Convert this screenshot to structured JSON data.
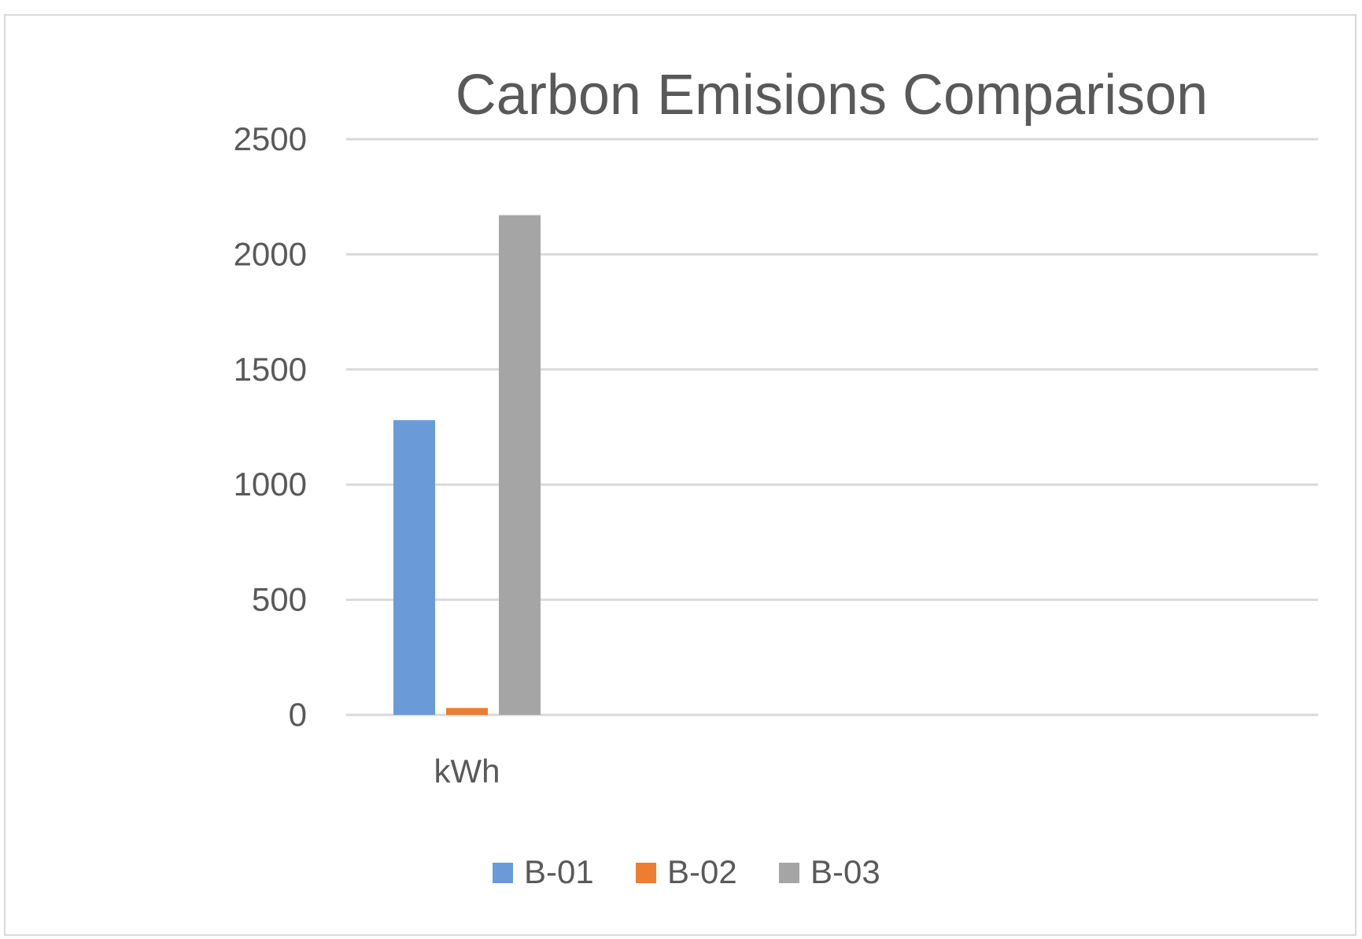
{
  "chart_data": {
    "type": "bar",
    "title": "Carbon Emisions Comparison",
    "categories": [
      "kWh"
    ],
    "series": [
      {
        "name": "B-01",
        "values": [
          1280
        ],
        "color": "#6a9bd8"
      },
      {
        "name": "B-02",
        "values": [
          30
        ],
        "color": "#ed7d31"
      },
      {
        "name": "B-03",
        "values": [
          2170
        ],
        "color": "#a5a5a5"
      }
    ],
    "y_ticks": [
      "0",
      "500",
      "1000",
      "1500",
      "2000",
      "2500"
    ],
    "ylim": [
      0,
      2500
    ],
    "xlabel": "",
    "ylabel": "",
    "grid": true,
    "legend_position": "bottom",
    "gridline_color": "#d9d9d9"
  }
}
